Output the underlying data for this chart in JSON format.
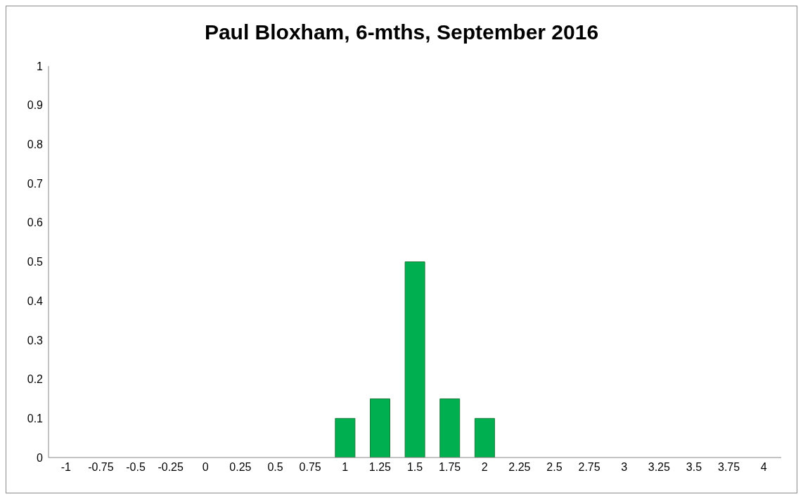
{
  "chart_data": {
    "type": "bar",
    "title": "Paul Bloxham, 6-mths, September 2016",
    "categories": [
      "-1",
      "-0.75",
      "-0.5",
      "-0.25",
      "0",
      "0.25",
      "0.5",
      "0.75",
      "1",
      "1.25",
      "1.5",
      "1.75",
      "2",
      "2.25",
      "2.5",
      "2.75",
      "3",
      "3.25",
      "3.5",
      "3.75",
      "4"
    ],
    "values": [
      0,
      0,
      0,
      0,
      0,
      0,
      0,
      0,
      0.1,
      0.15,
      0.5,
      0.15,
      0.1,
      0,
      0,
      0,
      0,
      0,
      0,
      0,
      0
    ],
    "color": "#00b050",
    "ylim": [
      0,
      1
    ],
    "yticks": [
      0,
      0.1,
      0.2,
      0.3,
      0.4,
      0.5,
      0.6,
      0.7,
      0.8,
      0.9,
      1
    ],
    "grid": false
  }
}
